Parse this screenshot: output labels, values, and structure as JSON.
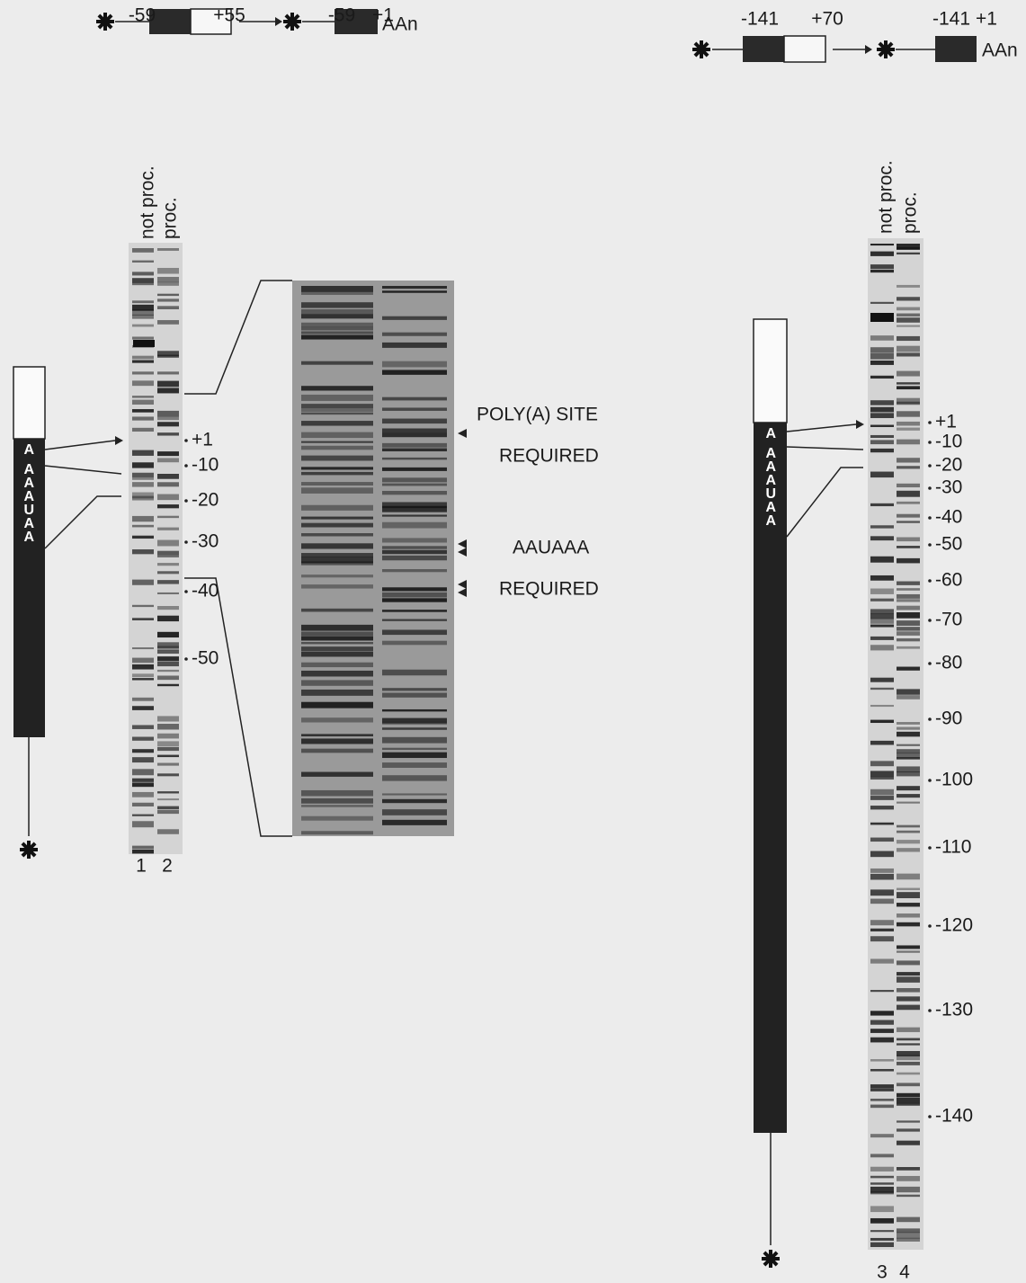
{
  "left_construct": {
    "start": "-59",
    "end": "+55",
    "product_start": "-59",
    "product_end": "+1",
    "tail": "AAn"
  },
  "right_construct": {
    "start": "-141",
    "end": "+70",
    "product_start": "-141",
    "product_end": "+1",
    "tail": "AAn"
  },
  "left_panel": {
    "lane_headers": [
      "not proc.",
      "proc."
    ],
    "lane_numbers": [
      "1",
      "2"
    ],
    "box_letters": [
      "A",
      "AAAUAA"
    ],
    "markers": [
      "+1",
      "-10",
      "-20",
      "-30",
      "-40",
      "-50"
    ]
  },
  "zoom_annotations": {
    "poly_a_site": "POLY(A) SITE",
    "poly_a_required": "REQUIRED",
    "aauaaa": "AAUAAA",
    "aauaaa_required": "REQUIRED"
  },
  "right_panel": {
    "lane_headers": [
      "not proc.",
      "proc."
    ],
    "lane_numbers": [
      "3",
      "4"
    ],
    "box_letters": [
      "A",
      "AAAUAA"
    ],
    "markers": [
      "+1",
      "-10",
      "-20",
      "-30",
      "-40",
      "-50",
      "-60",
      "-70",
      "-80",
      "-90",
      "-100",
      "-110",
      "-120",
      "-130",
      "-140"
    ]
  }
}
